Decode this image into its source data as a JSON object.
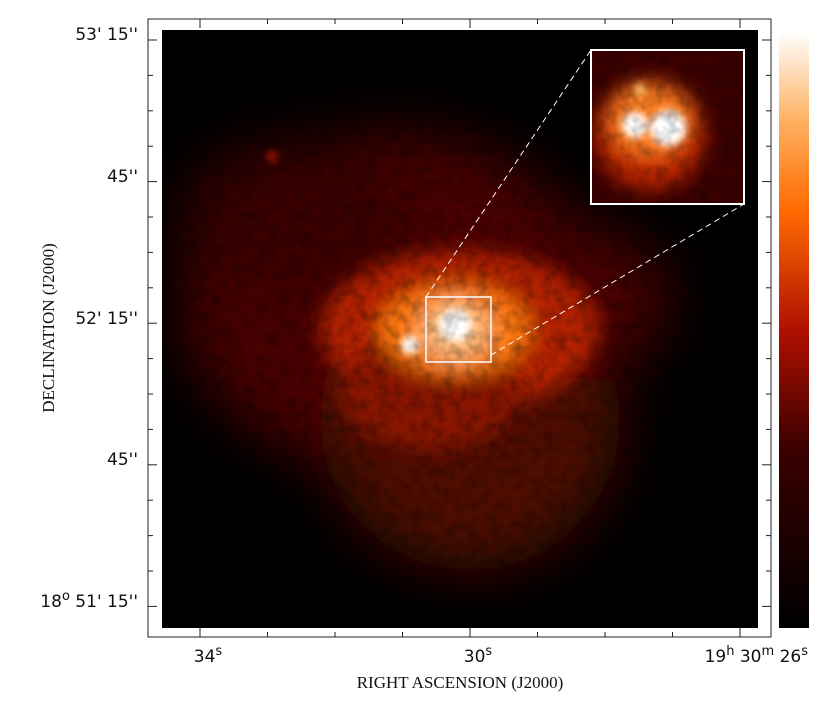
{
  "axes": {
    "x_label": "RIGHT ASCENSION (J2000)",
    "y_label": "DECLINATION (J2000)",
    "x_ticks": [
      [
        "34",
        "s"
      ],
      [
        "30",
        "s"
      ],
      [
        "19",
        "h",
        " 30",
        "m",
        " 26",
        "s"
      ]
    ],
    "y_ticks": [
      [
        "53' 15''"
      ],
      [
        "45''"
      ],
      [
        "52' 15''"
      ],
      [
        "45''"
      ],
      [
        "18",
        "o",
        " 51' 15''"
      ]
    ]
  }
}
